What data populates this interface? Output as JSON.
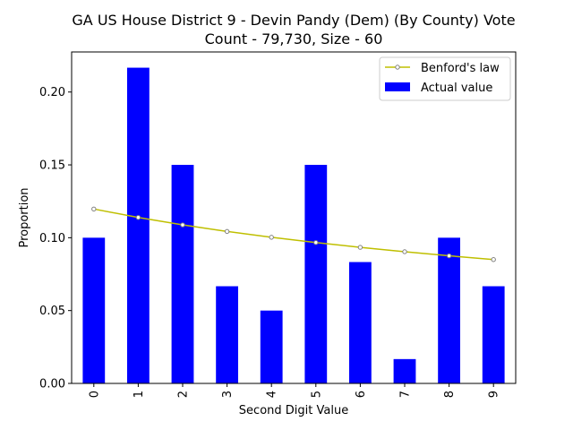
{
  "chart_data": {
    "type": "bar",
    "title_line1": "GA US House District 9 - Devin Pandy (Dem) (By County) Vote",
    "title_line2": "Count - 79,730, Size - 60",
    "xlabel": "Second Digit Value",
    "ylabel": "Proportion",
    "categories": [
      "0",
      "1",
      "2",
      "3",
      "4",
      "5",
      "6",
      "7",
      "8",
      "9"
    ],
    "series": [
      {
        "name": "Actual value",
        "kind": "bar",
        "color": "#0000ff",
        "values": [
          0.1,
          0.2167,
          0.15,
          0.0667,
          0.05,
          0.15,
          0.0833,
          0.0167,
          0.1,
          0.0667
        ]
      },
      {
        "name": "Benford's law",
        "kind": "line",
        "color": "#bfbf00",
        "marker_color": "#808080",
        "values": [
          0.1197,
          0.1139,
          0.1088,
          0.1043,
          0.1003,
          0.0967,
          0.0934,
          0.0904,
          0.0876,
          0.085
        ]
      }
    ],
    "ylim": [
      0,
      0.2275
    ],
    "yticks": [
      "0.00",
      "0.05",
      "0.10",
      "0.15",
      "0.20"
    ],
    "ytick_values": [
      0,
      0.05,
      0.1,
      0.15,
      0.2
    ],
    "legend_position": "top-right",
    "grid": false
  }
}
